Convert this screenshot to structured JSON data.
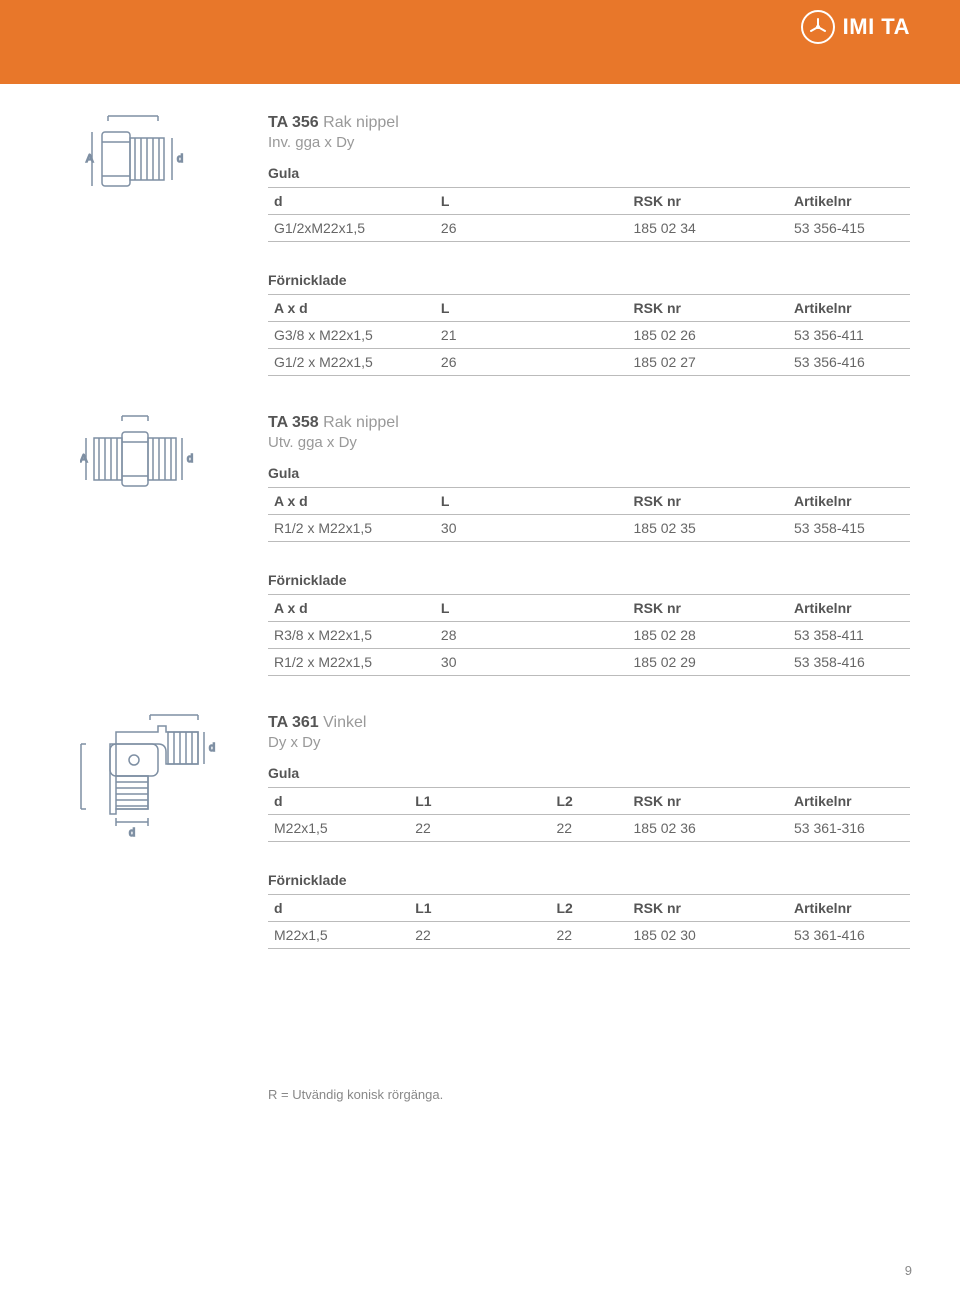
{
  "brand": {
    "text": "IMI TA"
  },
  "page_number": "9",
  "footnote": "R = Utvändig konisk rörgänga.",
  "sections": [
    {
      "title_strong": "TA 356",
      "title_rest": "Rak nippel",
      "subtitle": "Inv. gga x Dy",
      "diagram": "nipple1",
      "groups": [
        {
          "heading": "Gula",
          "columns": [
            "d",
            "L",
            "RSK nr",
            "Artikelnr"
          ],
          "col_widths": [
            "26%",
            "30%",
            "25%",
            "19%"
          ],
          "rows": [
            [
              "G1/2xM22x1,5",
              "26",
              "185 02 34",
              "53 356-415"
            ]
          ]
        },
        {
          "heading": "Förnicklade",
          "columns": [
            "A x d",
            "L",
            "RSK nr",
            "Artikelnr"
          ],
          "col_widths": [
            "26%",
            "30%",
            "25%",
            "19%"
          ],
          "rows": [
            [
              "G3/8 x M22x1,5",
              "21",
              "185 02 26",
              "53 356-411"
            ],
            [
              "G1/2 x M22x1,5",
              "26",
              "185 02 27",
              "53 356-416"
            ]
          ]
        }
      ]
    },
    {
      "title_strong": "TA 358",
      "title_rest": "Rak nippel",
      "subtitle": "Utv. gga x Dy",
      "diagram": "nipple2",
      "groups": [
        {
          "heading": "Gula",
          "columns": [
            "A x d",
            "L",
            "RSK nr",
            "Artikelnr"
          ],
          "col_widths": [
            "26%",
            "30%",
            "25%",
            "19%"
          ],
          "rows": [
            [
              "R1/2 x M22x1,5",
              "30",
              "185 02 35",
              "53 358-415"
            ]
          ]
        },
        {
          "heading": "Förnicklade",
          "columns": [
            "A x d",
            "L",
            "RSK nr",
            "Artikelnr"
          ],
          "col_widths": [
            "26%",
            "30%",
            "25%",
            "19%"
          ],
          "rows": [
            [
              "R3/8 x M22x1,5",
              "28",
              "185 02 28",
              "53 358-411"
            ],
            [
              "R1/2 x M22x1,5",
              "30",
              "185 02 29",
              "53 358-416"
            ]
          ]
        }
      ]
    },
    {
      "title_strong": "TA 361",
      "title_rest": "Vinkel",
      "subtitle": "Dy x Dy",
      "diagram": "elbow",
      "groups": [
        {
          "heading": "Gula",
          "columns": [
            "d",
            "L1",
            "L2",
            "RSK nr",
            "Artikelnr"
          ],
          "col_widths": [
            "22%",
            "22%",
            "12%",
            "25%",
            "19%"
          ],
          "rows": [
            [
              "M22x1,5",
              "22",
              "22",
              "185 02 36",
              "53 361-316"
            ]
          ]
        },
        {
          "heading": "Förnicklade",
          "columns": [
            "d",
            "L1",
            "L2",
            "RSK nr",
            "Artikelnr"
          ],
          "col_widths": [
            "22%",
            "22%",
            "12%",
            "25%",
            "19%"
          ],
          "rows": [
            [
              "M22x1,5",
              "22",
              "22",
              "185 02 30",
              "53 361-416"
            ]
          ]
        }
      ]
    }
  ]
}
